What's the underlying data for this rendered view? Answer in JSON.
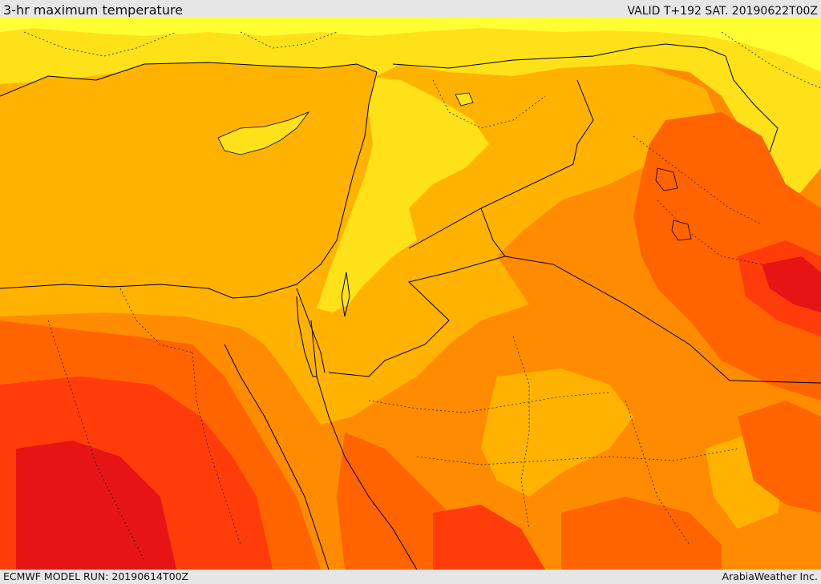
{
  "header": {
    "title": "3-hr maximum temperature",
    "valid_time": "VALID T+192 SAT. 20190622T00Z"
  },
  "footer": {
    "model_run": "ECMWF MODEL RUN: 20190614T00Z",
    "credit": "ArabiaWeather Inc."
  },
  "map": {
    "field": "3-hr maximum temperature",
    "color_scale": [
      "#ffff33",
      "#ffe11a",
      "#ffb300",
      "#ff8c00",
      "#ff6400",
      "#ff3c0a",
      "#e61414"
    ],
    "coastline_color": "#000000",
    "border_color": "#000000"
  }
}
